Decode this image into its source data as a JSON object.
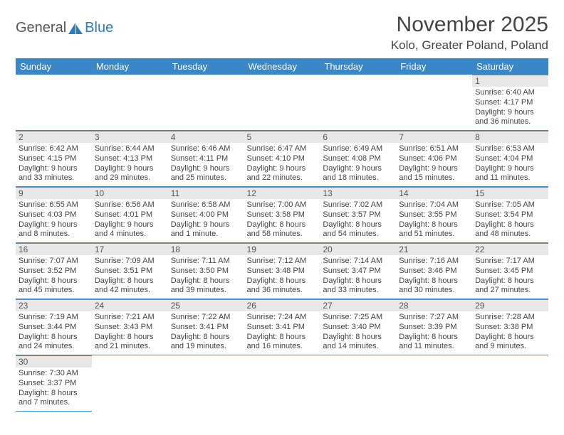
{
  "logo": {
    "text1": "General",
    "text2": "Blue"
  },
  "title": "November 2025",
  "location": "Kolo, Greater Poland, Poland",
  "colors": {
    "header_bg": "#3a87c8",
    "header_text": "#ffffff",
    "daynum_bg": "#e8e8e8",
    "row_divider": "#3a87c8",
    "text": "#444444"
  },
  "weekdays": [
    "Sunday",
    "Monday",
    "Tuesday",
    "Wednesday",
    "Thursday",
    "Friday",
    "Saturday"
  ],
  "weeks": [
    [
      null,
      null,
      null,
      null,
      null,
      null,
      {
        "n": "1",
        "sr": "Sunrise: 6:40 AM",
        "ss": "Sunset: 4:17 PM",
        "d1": "Daylight: 9 hours",
        "d2": "and 36 minutes."
      }
    ],
    [
      {
        "n": "2",
        "sr": "Sunrise: 6:42 AM",
        "ss": "Sunset: 4:15 PM",
        "d1": "Daylight: 9 hours",
        "d2": "and 33 minutes."
      },
      {
        "n": "3",
        "sr": "Sunrise: 6:44 AM",
        "ss": "Sunset: 4:13 PM",
        "d1": "Daylight: 9 hours",
        "d2": "and 29 minutes."
      },
      {
        "n": "4",
        "sr": "Sunrise: 6:46 AM",
        "ss": "Sunset: 4:11 PM",
        "d1": "Daylight: 9 hours",
        "d2": "and 25 minutes."
      },
      {
        "n": "5",
        "sr": "Sunrise: 6:47 AM",
        "ss": "Sunset: 4:10 PM",
        "d1": "Daylight: 9 hours",
        "d2": "and 22 minutes."
      },
      {
        "n": "6",
        "sr": "Sunrise: 6:49 AM",
        "ss": "Sunset: 4:08 PM",
        "d1": "Daylight: 9 hours",
        "d2": "and 18 minutes."
      },
      {
        "n": "7",
        "sr": "Sunrise: 6:51 AM",
        "ss": "Sunset: 4:06 PM",
        "d1": "Daylight: 9 hours",
        "d2": "and 15 minutes."
      },
      {
        "n": "8",
        "sr": "Sunrise: 6:53 AM",
        "ss": "Sunset: 4:04 PM",
        "d1": "Daylight: 9 hours",
        "d2": "and 11 minutes."
      }
    ],
    [
      {
        "n": "9",
        "sr": "Sunrise: 6:55 AM",
        "ss": "Sunset: 4:03 PM",
        "d1": "Daylight: 9 hours",
        "d2": "and 8 minutes."
      },
      {
        "n": "10",
        "sr": "Sunrise: 6:56 AM",
        "ss": "Sunset: 4:01 PM",
        "d1": "Daylight: 9 hours",
        "d2": "and 4 minutes."
      },
      {
        "n": "11",
        "sr": "Sunrise: 6:58 AM",
        "ss": "Sunset: 4:00 PM",
        "d1": "Daylight: 9 hours",
        "d2": "and 1 minute."
      },
      {
        "n": "12",
        "sr": "Sunrise: 7:00 AM",
        "ss": "Sunset: 3:58 PM",
        "d1": "Daylight: 8 hours",
        "d2": "and 58 minutes."
      },
      {
        "n": "13",
        "sr": "Sunrise: 7:02 AM",
        "ss": "Sunset: 3:57 PM",
        "d1": "Daylight: 8 hours",
        "d2": "and 54 minutes."
      },
      {
        "n": "14",
        "sr": "Sunrise: 7:04 AM",
        "ss": "Sunset: 3:55 PM",
        "d1": "Daylight: 8 hours",
        "d2": "and 51 minutes."
      },
      {
        "n": "15",
        "sr": "Sunrise: 7:05 AM",
        "ss": "Sunset: 3:54 PM",
        "d1": "Daylight: 8 hours",
        "d2": "and 48 minutes."
      }
    ],
    [
      {
        "n": "16",
        "sr": "Sunrise: 7:07 AM",
        "ss": "Sunset: 3:52 PM",
        "d1": "Daylight: 8 hours",
        "d2": "and 45 minutes."
      },
      {
        "n": "17",
        "sr": "Sunrise: 7:09 AM",
        "ss": "Sunset: 3:51 PM",
        "d1": "Daylight: 8 hours",
        "d2": "and 42 minutes."
      },
      {
        "n": "18",
        "sr": "Sunrise: 7:11 AM",
        "ss": "Sunset: 3:50 PM",
        "d1": "Daylight: 8 hours",
        "d2": "and 39 minutes."
      },
      {
        "n": "19",
        "sr": "Sunrise: 7:12 AM",
        "ss": "Sunset: 3:48 PM",
        "d1": "Daylight: 8 hours",
        "d2": "and 36 minutes."
      },
      {
        "n": "20",
        "sr": "Sunrise: 7:14 AM",
        "ss": "Sunset: 3:47 PM",
        "d1": "Daylight: 8 hours",
        "d2": "and 33 minutes."
      },
      {
        "n": "21",
        "sr": "Sunrise: 7:16 AM",
        "ss": "Sunset: 3:46 PM",
        "d1": "Daylight: 8 hours",
        "d2": "and 30 minutes."
      },
      {
        "n": "22",
        "sr": "Sunrise: 7:17 AM",
        "ss": "Sunset: 3:45 PM",
        "d1": "Daylight: 8 hours",
        "d2": "and 27 minutes."
      }
    ],
    [
      {
        "n": "23",
        "sr": "Sunrise: 7:19 AM",
        "ss": "Sunset: 3:44 PM",
        "d1": "Daylight: 8 hours",
        "d2": "and 24 minutes."
      },
      {
        "n": "24",
        "sr": "Sunrise: 7:21 AM",
        "ss": "Sunset: 3:43 PM",
        "d1": "Daylight: 8 hours",
        "d2": "and 21 minutes."
      },
      {
        "n": "25",
        "sr": "Sunrise: 7:22 AM",
        "ss": "Sunset: 3:41 PM",
        "d1": "Daylight: 8 hours",
        "d2": "and 19 minutes."
      },
      {
        "n": "26",
        "sr": "Sunrise: 7:24 AM",
        "ss": "Sunset: 3:41 PM",
        "d1": "Daylight: 8 hours",
        "d2": "and 16 minutes."
      },
      {
        "n": "27",
        "sr": "Sunrise: 7:25 AM",
        "ss": "Sunset: 3:40 PM",
        "d1": "Daylight: 8 hours",
        "d2": "and 14 minutes."
      },
      {
        "n": "28",
        "sr": "Sunrise: 7:27 AM",
        "ss": "Sunset: 3:39 PM",
        "d1": "Daylight: 8 hours",
        "d2": "and 11 minutes."
      },
      {
        "n": "29",
        "sr": "Sunrise: 7:28 AM",
        "ss": "Sunset: 3:38 PM",
        "d1": "Daylight: 8 hours",
        "d2": "and 9 minutes."
      }
    ],
    [
      {
        "n": "30",
        "sr": "Sunrise: 7:30 AM",
        "ss": "Sunset: 3:37 PM",
        "d1": "Daylight: 8 hours",
        "d2": "and 7 minutes."
      },
      null,
      null,
      null,
      null,
      null,
      null
    ]
  ]
}
